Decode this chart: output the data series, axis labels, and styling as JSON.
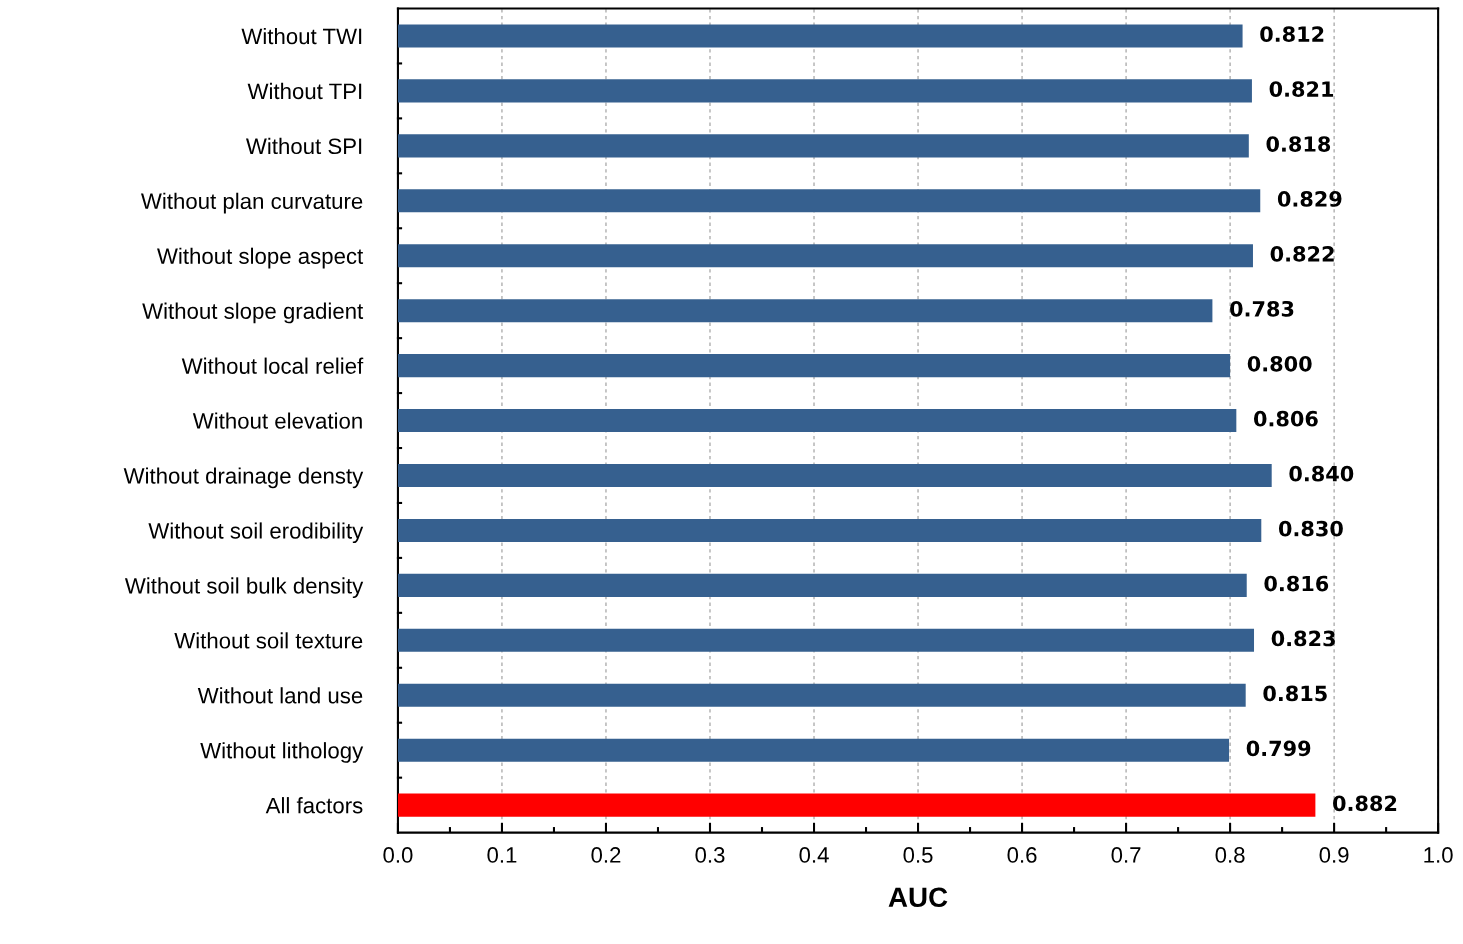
{
  "chart_data": {
    "type": "bar",
    "orientation": "horizontal",
    "xlabel": "AUC",
    "categories": [
      "Without TWI",
      "Without TPI",
      "Without SPI",
      "Without plan curvature",
      "Without slope aspect",
      "Without slope gradient",
      "Without local relief",
      "Without elevation",
      "Without drainage densty",
      "Without soil erodibility",
      "Without soil bulk density",
      "Without soil texture",
      "Without land use",
      "Without lithology",
      "All factors"
    ],
    "values": [
      0.812,
      0.821,
      0.818,
      0.829,
      0.822,
      0.783,
      0.8,
      0.806,
      0.84,
      0.83,
      0.816,
      0.823,
      0.815,
      0.799,
      0.882
    ],
    "colors": [
      "#36608f",
      "#36608f",
      "#36608f",
      "#36608f",
      "#36608f",
      "#36608f",
      "#36608f",
      "#36608f",
      "#36608f",
      "#36608f",
      "#36608f",
      "#36608f",
      "#36608f",
      "#36608f",
      "#ff0000"
    ],
    "value_labels": [
      "0.812",
      "0.821",
      "0.818",
      "0.829",
      "0.822",
      "0.783",
      "0.800",
      "0.806",
      "0.840",
      "0.830",
      "0.816",
      "0.823",
      "0.815",
      "0.799",
      "0.882"
    ],
    "xlim": [
      0.0,
      1.0
    ],
    "xticks": [
      {
        "value": 0.0,
        "label": "0.0"
      },
      {
        "value": 0.1,
        "label": "0.1"
      },
      {
        "value": 0.2,
        "label": "0.2"
      },
      {
        "value": 0.3,
        "label": "0.3"
      },
      {
        "value": 0.4,
        "label": "0.4"
      },
      {
        "value": 0.5,
        "label": "0.5"
      },
      {
        "value": 0.6,
        "label": "0.6"
      },
      {
        "value": 0.7,
        "label": "0.7"
      },
      {
        "value": 0.8,
        "label": "0.8"
      },
      {
        "value": 0.9,
        "label": "0.9"
      },
      {
        "value": 1.0,
        "label": "1.0"
      }
    ],
    "grid": "x",
    "legend": false
  }
}
